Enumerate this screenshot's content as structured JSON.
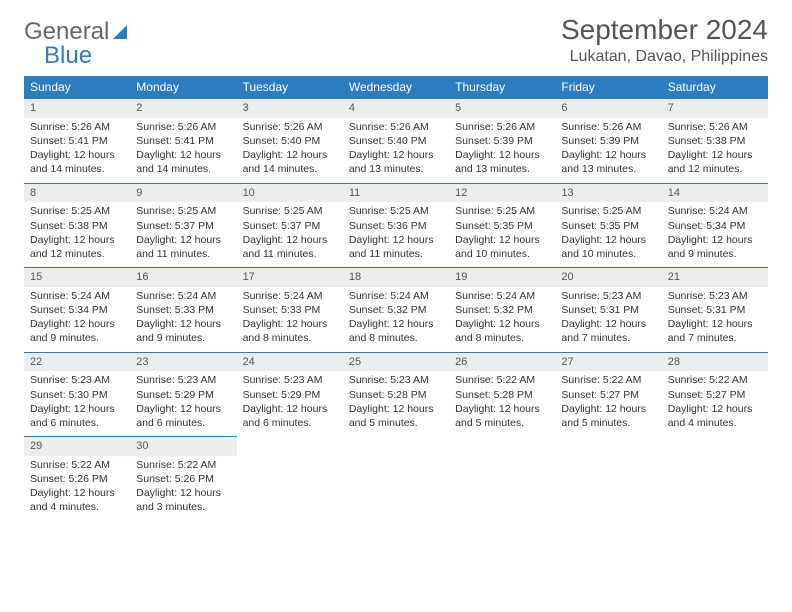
{
  "logo": {
    "word1": "General",
    "word2": "Blue"
  },
  "title": "September 2024",
  "location": "Lukatan, Davao, Philippines",
  "colors": {
    "brand": "#2e7cc0",
    "header_text": "#ffffff",
    "daynum_bg": "#eceded",
    "text": "#333333",
    "subtext": "#555555"
  },
  "weekdays": [
    "Sunday",
    "Monday",
    "Tuesday",
    "Wednesday",
    "Thursday",
    "Friday",
    "Saturday"
  ],
  "days": [
    {
      "n": 1,
      "sr": "5:26 AM",
      "ss": "5:41 PM",
      "dl": "12 hours and 14 minutes."
    },
    {
      "n": 2,
      "sr": "5:26 AM",
      "ss": "5:41 PM",
      "dl": "12 hours and 14 minutes."
    },
    {
      "n": 3,
      "sr": "5:26 AM",
      "ss": "5:40 PM",
      "dl": "12 hours and 14 minutes."
    },
    {
      "n": 4,
      "sr": "5:26 AM",
      "ss": "5:40 PM",
      "dl": "12 hours and 13 minutes."
    },
    {
      "n": 5,
      "sr": "5:26 AM",
      "ss": "5:39 PM",
      "dl": "12 hours and 13 minutes."
    },
    {
      "n": 6,
      "sr": "5:26 AM",
      "ss": "5:39 PM",
      "dl": "12 hours and 13 minutes."
    },
    {
      "n": 7,
      "sr": "5:26 AM",
      "ss": "5:38 PM",
      "dl": "12 hours and 12 minutes."
    },
    {
      "n": 8,
      "sr": "5:25 AM",
      "ss": "5:38 PM",
      "dl": "12 hours and 12 minutes."
    },
    {
      "n": 9,
      "sr": "5:25 AM",
      "ss": "5:37 PM",
      "dl": "12 hours and 11 minutes."
    },
    {
      "n": 10,
      "sr": "5:25 AM",
      "ss": "5:37 PM",
      "dl": "12 hours and 11 minutes."
    },
    {
      "n": 11,
      "sr": "5:25 AM",
      "ss": "5:36 PM",
      "dl": "12 hours and 11 minutes."
    },
    {
      "n": 12,
      "sr": "5:25 AM",
      "ss": "5:35 PM",
      "dl": "12 hours and 10 minutes."
    },
    {
      "n": 13,
      "sr": "5:25 AM",
      "ss": "5:35 PM",
      "dl": "12 hours and 10 minutes."
    },
    {
      "n": 14,
      "sr": "5:24 AM",
      "ss": "5:34 PM",
      "dl": "12 hours and 9 minutes."
    },
    {
      "n": 15,
      "sr": "5:24 AM",
      "ss": "5:34 PM",
      "dl": "12 hours and 9 minutes."
    },
    {
      "n": 16,
      "sr": "5:24 AM",
      "ss": "5:33 PM",
      "dl": "12 hours and 9 minutes."
    },
    {
      "n": 17,
      "sr": "5:24 AM",
      "ss": "5:33 PM",
      "dl": "12 hours and 8 minutes."
    },
    {
      "n": 18,
      "sr": "5:24 AM",
      "ss": "5:32 PM",
      "dl": "12 hours and 8 minutes."
    },
    {
      "n": 19,
      "sr": "5:24 AM",
      "ss": "5:32 PM",
      "dl": "12 hours and 8 minutes."
    },
    {
      "n": 20,
      "sr": "5:23 AM",
      "ss": "5:31 PM",
      "dl": "12 hours and 7 minutes."
    },
    {
      "n": 21,
      "sr": "5:23 AM",
      "ss": "5:31 PM",
      "dl": "12 hours and 7 minutes."
    },
    {
      "n": 22,
      "sr": "5:23 AM",
      "ss": "5:30 PM",
      "dl": "12 hours and 6 minutes."
    },
    {
      "n": 23,
      "sr": "5:23 AM",
      "ss": "5:29 PM",
      "dl": "12 hours and 6 minutes."
    },
    {
      "n": 24,
      "sr": "5:23 AM",
      "ss": "5:29 PM",
      "dl": "12 hours and 6 minutes."
    },
    {
      "n": 25,
      "sr": "5:23 AM",
      "ss": "5:28 PM",
      "dl": "12 hours and 5 minutes."
    },
    {
      "n": 26,
      "sr": "5:22 AM",
      "ss": "5:28 PM",
      "dl": "12 hours and 5 minutes."
    },
    {
      "n": 27,
      "sr": "5:22 AM",
      "ss": "5:27 PM",
      "dl": "12 hours and 5 minutes."
    },
    {
      "n": 28,
      "sr": "5:22 AM",
      "ss": "5:27 PM",
      "dl": "12 hours and 4 minutes."
    },
    {
      "n": 29,
      "sr": "5:22 AM",
      "ss": "5:26 PM",
      "dl": "12 hours and 4 minutes."
    },
    {
      "n": 30,
      "sr": "5:22 AM",
      "ss": "5:26 PM",
      "dl": "12 hours and 3 minutes."
    }
  ],
  "labels": {
    "sunrise": "Sunrise:",
    "sunset": "Sunset:",
    "daylight": "Daylight:"
  }
}
